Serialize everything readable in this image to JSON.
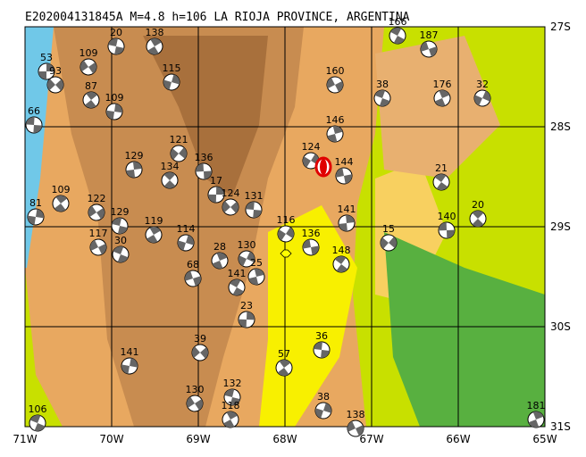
{
  "title": "E202004131845A M=4.8 h=106 LA RIOJA PROVINCE, ARGENTINA",
  "x_labels": [
    "71W",
    "70W",
    "69W",
    "68W",
    "67W",
    "66W",
    "65W"
  ],
  "y_labels": [
    "27S",
    "28S",
    "29S",
    "30S",
    "31S"
  ],
  "events": [
    "53",
    "93",
    "66",
    "87",
    "109",
    "109",
    "20",
    "138",
    "115",
    "160",
    "38",
    "176",
    "32",
    "187",
    "166",
    "146",
    "124",
    "144",
    "21",
    "129",
    "121",
    "136",
    "134",
    "17",
    "124",
    "131",
    "109",
    "81",
    "122",
    "129",
    "119",
    "114",
    "117",
    "30",
    "28",
    "130",
    "68",
    "141",
    "25",
    "116",
    "136",
    "148",
    "141",
    "15",
    "140",
    "20",
    "23",
    "39",
    "36",
    "57",
    "141",
    "130",
    "132",
    "118",
    "38",
    "138",
    "106",
    "181"
  ]
}
